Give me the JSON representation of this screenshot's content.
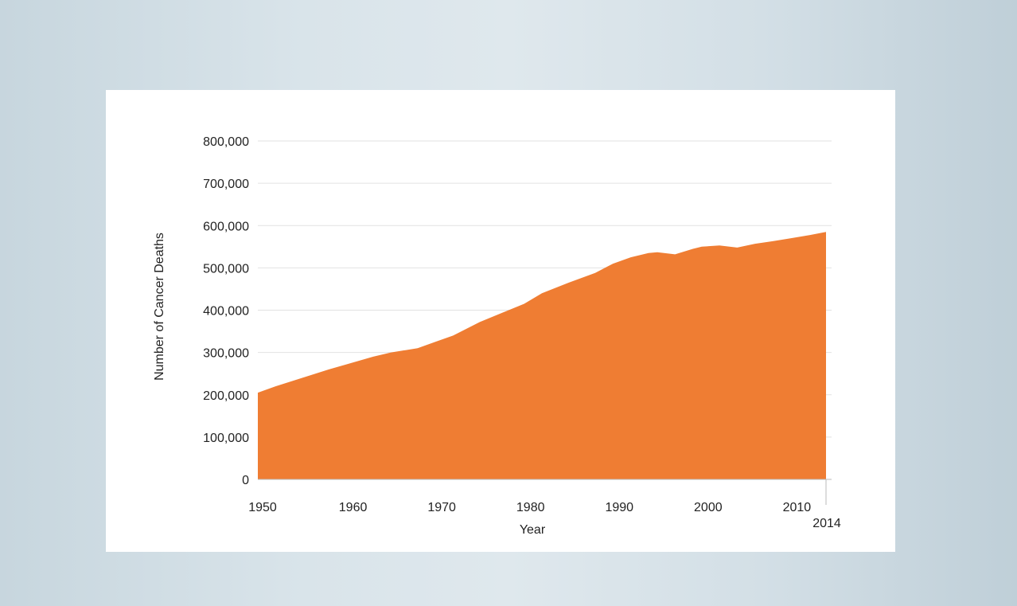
{
  "colors": {
    "area_fill": "#ef7d33",
    "gridline": "#e2e2e2",
    "axis_line": "#bbbbbb",
    "panel": "#ffffff"
  },
  "chart_data": {
    "type": "area",
    "xlabel": "Year",
    "ylabel": "Number of Cancer Deaths",
    "xlim": [
      1950,
      2014
    ],
    "ylim": [
      0,
      800000
    ],
    "x_ticks": [
      1950,
      1960,
      1970,
      1980,
      1990,
      2000,
      2010,
      2014
    ],
    "y_ticks": [
      0,
      100000,
      200000,
      300000,
      400000,
      500000,
      600000,
      700000,
      800000
    ],
    "y_tick_labels": [
      "0",
      "100,000",
      "200,000",
      "300,000",
      "400,000",
      "500,000",
      "600,000",
      "700,000",
      "800,000"
    ],
    "grid": true,
    "series": [
      {
        "x": [
          1950,
          1952,
          1955,
          1958,
          1960,
          1963,
          1965,
          1968,
          1970,
          1972,
          1975,
          1978,
          1980,
          1982,
          1985,
          1988,
          1990,
          1992,
          1994,
          1995,
          1997,
          1999,
          2000,
          2002,
          2004,
          2006,
          2008,
          2010,
          2012,
          2014
        ],
        "y": [
          205000,
          220000,
          240000,
          260000,
          272000,
          290000,
          300000,
          310000,
          325000,
          340000,
          372000,
          398000,
          415000,
          440000,
          465000,
          488000,
          510000,
          525000,
          535000,
          537000,
          532000,
          545000,
          550000,
          553000,
          548000,
          557000,
          563000,
          570000,
          577000,
          585000
        ]
      }
    ]
  }
}
